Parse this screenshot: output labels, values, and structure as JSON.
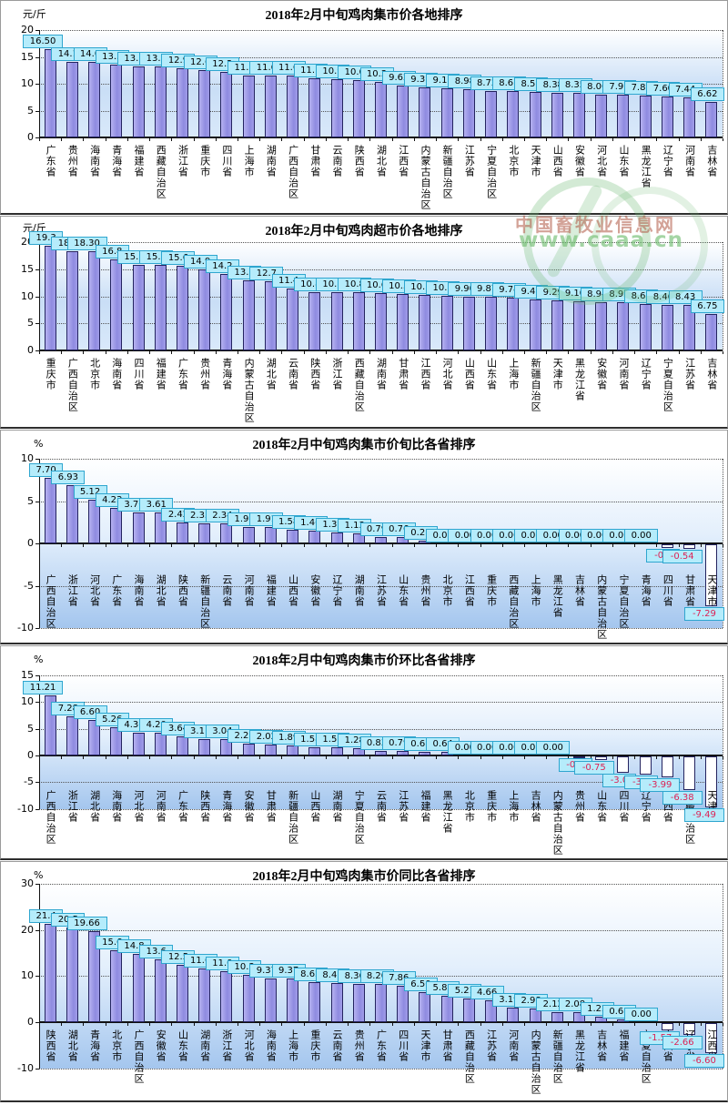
{
  "page": {
    "watermark": {
      "line1": "中国畜牧业信息网",
      "line2": "www.caaa.cn"
    }
  },
  "colors": {
    "bar_fill": "#9a96e4",
    "bar_border": "#23235f",
    "negative_bar_fill": "#ffffff",
    "tag_background": "#b5ecfb",
    "tag_border": "#2fa6cf",
    "tag_text": "#000000",
    "tag_text_negative": "#dd2255",
    "plot_gradient_bottom": "#a4c6ee",
    "watermark_green": "#6fba73"
  },
  "chart_data": [
    {
      "type": "bar",
      "title": "2018年2月中旬鸡肉集市价各地排序",
      "unit": "元/斤",
      "ylim": [
        0,
        20
      ],
      "yticks": [
        20,
        15,
        10,
        5,
        0
      ],
      "grid": "dotted-horizontal",
      "legend": "none",
      "categories": [
        "广东省",
        "贵州省",
        "海南省",
        "青海省",
        "福建省",
        "西藏自治区",
        "浙江省",
        "重庆市",
        "四川省",
        "上海市",
        "湖南省",
        "广西自治区",
        "甘肃省",
        "云南省",
        "陕西省",
        "湖北省",
        "江西省",
        "内蒙古自治区",
        "新疆自治区",
        "江苏省",
        "宁夏自治区",
        "北京市",
        "天津市",
        "山西省",
        "安徽省",
        "河北省",
        "山东省",
        "黑龙江省",
        "辽宁省",
        "河南省",
        "吉林省"
      ],
      "values": [
        16.5,
        14.1,
        14.0,
        13.5,
        13.3,
        13.3,
        12.9,
        12.6,
        12.2,
        11.6,
        11.6,
        11.6,
        11.1,
        10.9,
        10.6,
        10.3,
        9.62,
        9.33,
        9.15,
        8.98,
        8.72,
        8.67,
        8.52,
        8.38,
        8.35,
        8.0,
        7.97,
        7.87,
        7.6,
        7.44,
        6.62
      ],
      "value_labels": [
        "16.50",
        "14.1",
        "14.0",
        "13.5",
        "13.3",
        "13.3",
        "12.9",
        "12.6",
        "12.2",
        "11.6",
        "11.6",
        "11.6",
        "11.1",
        "10.9",
        "10.6",
        "10.3",
        "9.62",
        "9.33",
        "9.15",
        "8.98",
        "8.72",
        "8.67",
        "8.52",
        "8.38",
        "8.35",
        "8.00",
        "7.97",
        "7.87",
        "7.60",
        "7.44",
        "6.62"
      ]
    },
    {
      "type": "bar",
      "title": "2018年2月中旬鸡肉超市价各地排序",
      "unit": "元/斤",
      "ylim": [
        0,
        20
      ],
      "yticks": [
        20,
        15,
        10,
        5,
        0
      ],
      "grid": "dotted-horizontal",
      "legend": "none",
      "categories": [
        "重庆市",
        "广西自治区",
        "北京市",
        "海南省",
        "四川省",
        "福建省",
        "广东省",
        "贵州省",
        "青海省",
        "内蒙古自治区",
        "湖北省",
        "云南省",
        "陕西省",
        "浙江省",
        "西藏自治区",
        "湖南省",
        "甘肃省",
        "江西省",
        "河北省",
        "山西省",
        "山东省",
        "上海市",
        "新疆自治区",
        "天津市",
        "黑龙江省",
        "安徽省",
        "河南省",
        "辽宁省",
        "宁夏自治区",
        "江苏省",
        "吉林省"
      ],
      "values": [
        19.3,
        18.3,
        18.3,
        16.8,
        15.8,
        15.8,
        15.6,
        14.9,
        14.2,
        13.0,
        12.7,
        11.4,
        10.8,
        10.8,
        10.8,
        10.6,
        10.5,
        10.3,
        10.1,
        9.9,
        9.87,
        9.74,
        9.45,
        9.29,
        9.1,
        8.94,
        8.91,
        8.64,
        8.46,
        8.43,
        6.75
      ],
      "value_labels": [
        "19.3",
        "18.3",
        "18.30",
        "16.8",
        "15.8",
        "15.8",
        "15.6",
        "14.9",
        "14.2",
        "13.0",
        "12.7",
        "11.4",
        "10.8",
        "10.8",
        "10.8",
        "10.6",
        "10.5",
        "10.3",
        "10.1",
        "9.90",
        "9.87",
        "9.74",
        "9.45",
        "9.29",
        "9.10",
        "8.94",
        "8.91",
        "8.64",
        "8.46",
        "8.43",
        "6.75"
      ]
    },
    {
      "type": "bar",
      "title": "2018年2月中旬鸡肉集市价旬比各省排序",
      "unit": "%",
      "ylim": [
        -10,
        10
      ],
      "yticks": [
        10,
        5,
        0,
        -5,
        -10
      ],
      "grid": "dotted-horizontal",
      "legend": "none",
      "categories": [
        "广西自治区",
        "浙江省",
        "河北省",
        "广东省",
        "海南省",
        "湖北省",
        "陕西省",
        "新疆自治区",
        "云南省",
        "河南省",
        "福建省",
        "山西省",
        "安徽省",
        "辽宁省",
        "湖南省",
        "江苏省",
        "山东省",
        "贵州省",
        "北京市",
        "江西省",
        "重庆市",
        "西藏自治区",
        "上海市",
        "黑龙江省",
        "吉林省",
        "内蒙古自治区",
        "宁夏自治区",
        "青海省",
        "四川省",
        "甘肃省",
        "天津市"
      ],
      "values": [
        7.7,
        6.93,
        5.12,
        4.23,
        3.7,
        3.61,
        2.42,
        2.35,
        2.34,
        1.92,
        1.91,
        1.58,
        1.46,
        1.33,
        1.13,
        0.79,
        0.76,
        0.28,
        0,
        0,
        0,
        0,
        0,
        0,
        0,
        0,
        0,
        0,
        -0.4,
        -0.54,
        -7.29
      ],
      "value_labels": [
        "7.70",
        "6.93",
        "5.12",
        "4.23",
        "3.70",
        "3.61",
        "2.42",
        "2.35",
        "2.34",
        "1.92",
        "1.91",
        "1.58",
        "1.46",
        "1.33",
        "1.13",
        "0.79",
        "0.76",
        "0.28",
        "0.00",
        "0.00",
        "0.00",
        "0.00",
        "0.00",
        "0.00",
        "0.00",
        "0.00",
        "0.00",
        "0.00",
        "-0.4",
        "-0.54",
        "-7.29"
      ]
    },
    {
      "type": "bar",
      "title": "2018年2月中旬鸡肉集市价环比各省排序",
      "unit": "%",
      "ylim": [
        -10,
        15
      ],
      "yticks": [
        15,
        10,
        5,
        0,
        -5,
        -10
      ],
      "grid": "dotted-horizontal",
      "legend": "none",
      "categories": [
        "广西自治区",
        "浙江省",
        "湖北省",
        "海南省",
        "河北省",
        "河南省",
        "广东省",
        "陕西省",
        "青海省",
        "安徽省",
        "甘肃省",
        "新疆自治区",
        "山西省",
        "湖南省",
        "宁夏自治区",
        "云南省",
        "江苏省",
        "福建省",
        "黑龙江省",
        "北京市",
        "重庆市",
        "上海市",
        "吉林省",
        "内蒙古自治区",
        "贵州省",
        "山东省",
        "四川省",
        "辽宁省",
        "江西省",
        "西藏自治区",
        "天津市"
      ],
      "values": [
        11.21,
        7.28,
        6.6,
        5.26,
        4.3,
        4.2,
        3.64,
        3.11,
        3.04,
        2.2,
        2.02,
        1.89,
        1.58,
        1.57,
        1.28,
        0.83,
        0.79,
        0.68,
        0.64,
        0,
        0,
        0,
        0,
        0,
        -0.2,
        -0.75,
        -3.0,
        -3.4,
        -3.99,
        -6.38,
        -9.49
      ],
      "value_labels": [
        "11.21",
        "7.28",
        "6.60",
        "5.26",
        "4.30",
        "4.20",
        "3.64",
        "3.11",
        "3.04",
        "2.20",
        "2.02",
        "1.89",
        "1.58",
        "1.57",
        "1.28",
        "0.83",
        "0.79",
        "0.68",
        "0.64",
        "0.00",
        "0.00",
        "0.00",
        "0.00",
        "0.00",
        "-0.2",
        "-0.75",
        "-3.0",
        "-3.4",
        "-3.99",
        "-6.38",
        "-9.49"
      ]
    },
    {
      "type": "bar",
      "title": "2018年2月中旬鸡肉集市价同比各省排序",
      "unit": "%",
      "ylim": [
        -10,
        30
      ],
      "yticks": [
        30,
        20,
        10,
        0,
        -10
      ],
      "grid": "dotted-horizontal",
      "legend": "none",
      "categories": [
        "陕西省",
        "湖北省",
        "青海省",
        "北京市",
        "广西自治区",
        "安徽省",
        "山东省",
        "湖南省",
        "浙江省",
        "河北省",
        "海南省",
        "上海市",
        "重庆市",
        "云南省",
        "贵州省",
        "广东省",
        "四川省",
        "天津市",
        "甘肃省",
        "西藏自治区",
        "江苏省",
        "河南省",
        "内蒙古自治区",
        "新疆自治区",
        "黑龙江省",
        "吉林省",
        "福建省",
        "宁夏自治区",
        "山西省",
        "辽宁省",
        "江西省"
      ],
      "values": [
        21.4,
        20.5,
        19.66,
        15.6,
        14.8,
        13.6,
        12.5,
        11.6,
        11.0,
        10.3,
        9.37,
        9.37,
        8.62,
        8.43,
        8.36,
        8.2,
        7.86,
        6.5,
        5.81,
        5.21,
        4.66,
        3.19,
        2.98,
        2.12,
        2.08,
        1.22,
        0.68,
        0,
        -1.57,
        -2.66,
        -6.6
      ],
      "value_labels": [
        "21.4",
        "20.5",
        "19.66",
        "15.6",
        "14.8",
        "13.6",
        "12.5",
        "11.6",
        "11.0",
        "10.3",
        "9.37",
        "9.37",
        "8.62",
        "8.43",
        "8.36",
        "8.20",
        "7.86",
        "6.50",
        "5.81",
        "5.21",
        "4.66",
        "3.19",
        "2.98",
        "2.12",
        "2.08",
        "1.22",
        "0.68",
        "0.00",
        "-1.57",
        "-2.66",
        "-6.60"
      ]
    }
  ]
}
